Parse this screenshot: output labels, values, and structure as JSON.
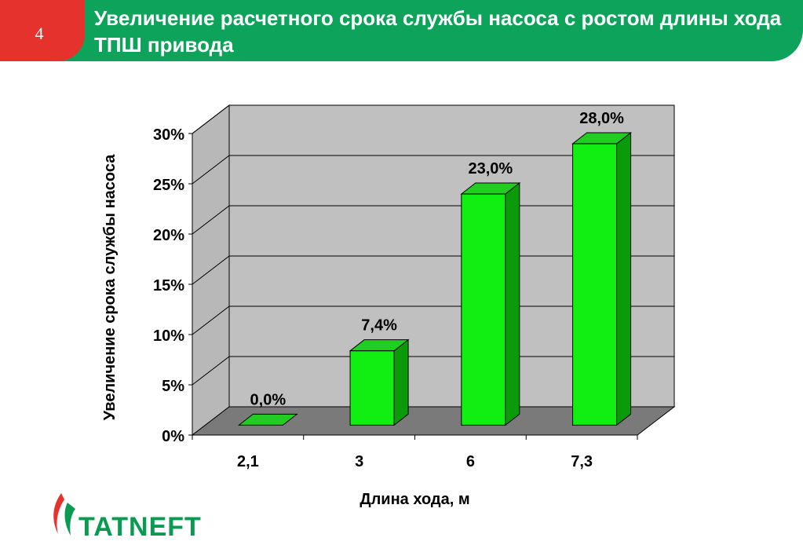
{
  "slide": {
    "number": "4",
    "title": "Увеличение расчетного срока службы насоса с ростом длины хода ТПШ привода"
  },
  "logo": {
    "text": "TATNEFT"
  },
  "colors": {
    "header": "#0ea35a",
    "badge": "#e5322d",
    "bar_front": "#11ee11",
    "bar_side": "#0a9a0a",
    "bar_top": "#22cc22"
  },
  "chart_data": {
    "type": "bar",
    "three_d": true,
    "categories": [
      "2,1",
      "3",
      "6",
      "7,3"
    ],
    "values": [
      0.0,
      7.4,
      23.0,
      28.0
    ],
    "data_labels": [
      "0,0%",
      "7,4%",
      "23,0%",
      "28,0%"
    ],
    "xlabel": "Длина хода, м",
    "ylabel": "Увеличение срока службы насоса",
    "ylim": [
      0,
      30
    ],
    "yticks": [
      0,
      5,
      10,
      15,
      20,
      25,
      30
    ],
    "ytick_labels": [
      "0%",
      "5%",
      "10%",
      "15%",
      "20%",
      "25%",
      "30%"
    ],
    "grid": true,
    "legend": "none"
  }
}
